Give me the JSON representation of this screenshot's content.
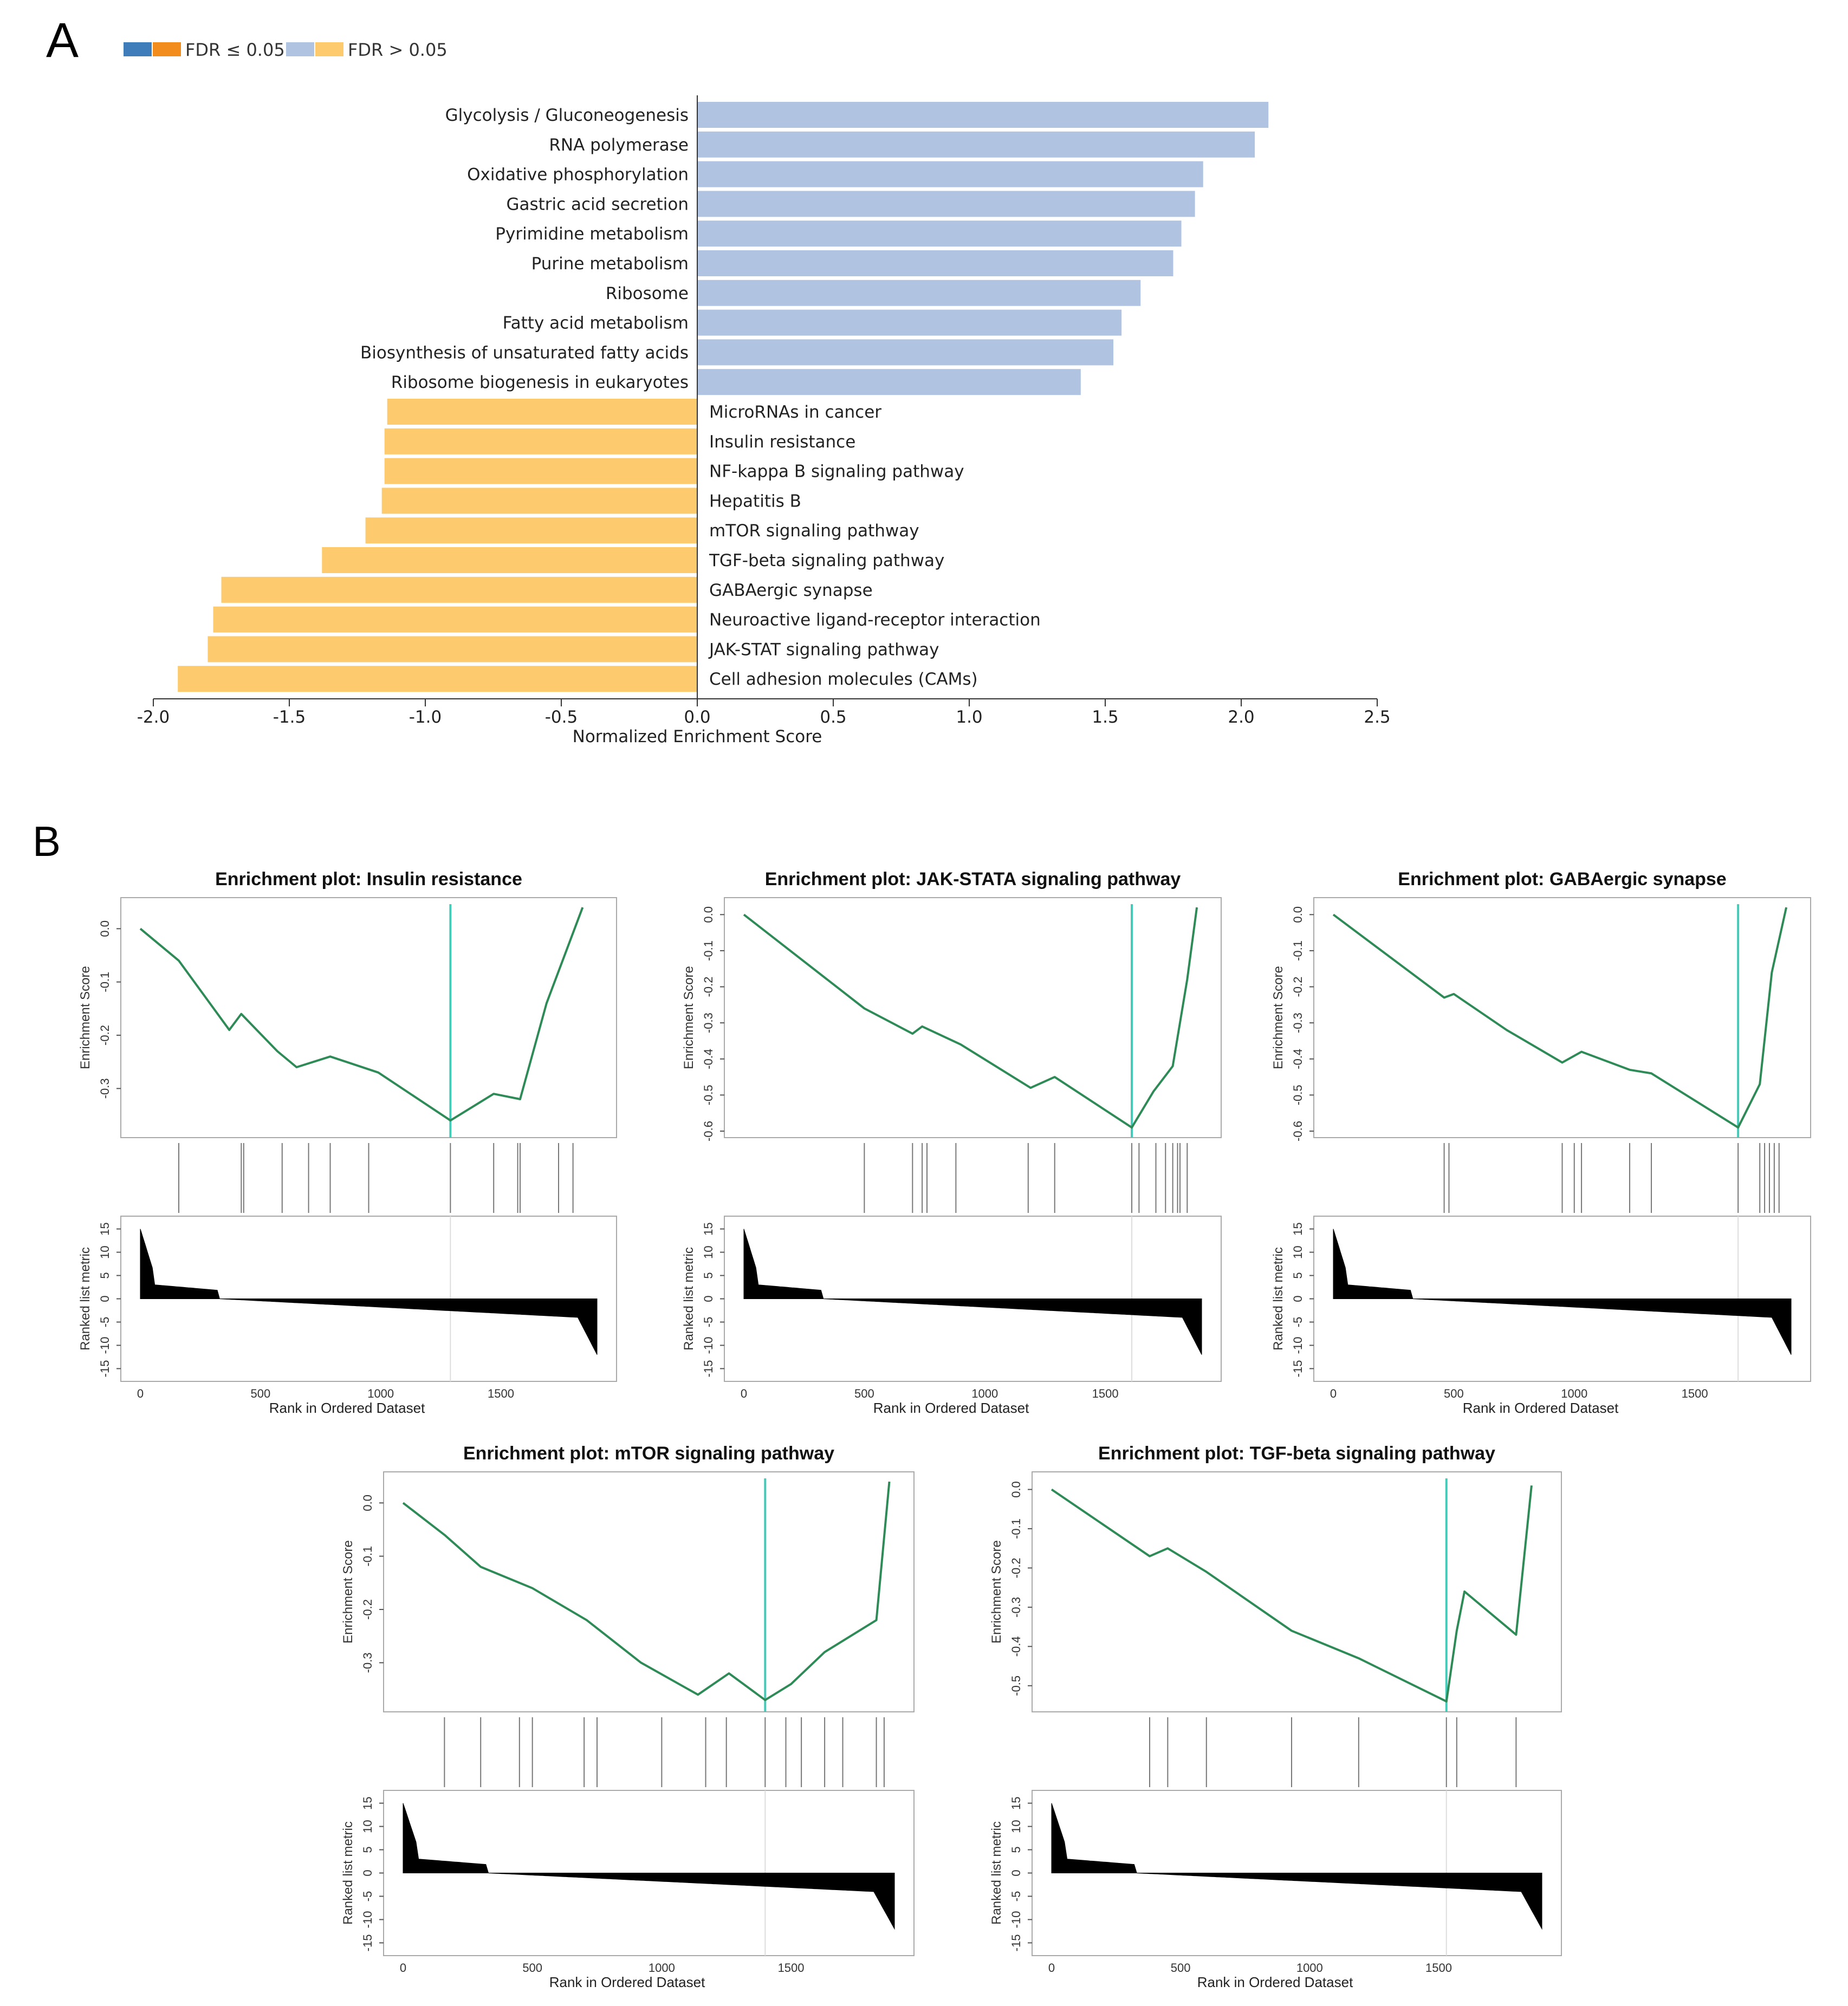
{
  "panel_labels": {
    "a": "A",
    "b": "B"
  },
  "colors": {
    "up_sig": "#3f7cba",
    "down_sig": "#f28c1c",
    "up_ns": "#b0c4e2",
    "down_ns": "#fdcb6e",
    "es_line": "#2e8b57",
    "peak_line": "#45c9b8",
    "axis": "#333333"
  },
  "legend": [
    {
      "colors": [
        "#3f7cba",
        "#f28c1c"
      ],
      "label": "FDR ≤ 0.05"
    },
    {
      "colors": [
        "#b0c4e2",
        "#fdcb6e"
      ],
      "label": "FDR > 0.05"
    }
  ],
  "chart_data": [
    {
      "type": "bar",
      "orientation": "horizontal",
      "title": "",
      "xlabel": "Normalized Enrichment Score",
      "xlim": [
        -2.0,
        2.5
      ],
      "xticks": [
        "-2.0",
        "-1.5",
        "-1.0",
        "-0.5",
        "0.0",
        "0.5",
        "1.0",
        "1.5",
        "2.0",
        "2.5"
      ],
      "categories": [
        "Glycolysis / Gluconeogenesis",
        "RNA polymerase",
        "Oxidative phosphorylation",
        "Gastric acid secretion",
        "Pyrimidine metabolism",
        "Purine metabolism",
        "Ribosome",
        "Fatty acid metabolism",
        "Biosynthesis of unsaturated fatty acids",
        "Ribosome biogenesis in eukaryotes",
        "MicroRNAs in cancer",
        "Insulin resistance",
        "NF-kappa B signaling pathway",
        "Hepatitis B",
        "mTOR signaling pathway",
        "TGF-beta signaling pathway",
        "GABAergic synapse",
        "Neuroactive ligand-receptor interaction",
        "JAK-STAT signaling pathway",
        "Cell adhesion molecules (CAMs)"
      ],
      "values": [
        2.1,
        2.05,
        1.86,
        1.83,
        1.78,
        1.75,
        1.63,
        1.56,
        1.53,
        1.41,
        -1.14,
        -1.15,
        -1.15,
        -1.16,
        -1.22,
        -1.38,
        -1.75,
        -1.78,
        -1.8,
        -1.91
      ],
      "fdr": "> 0.05"
    },
    {
      "type": "line",
      "title": "Enrichment plot: Insulin resistance",
      "ylabel": "Enrichment Score",
      "ylim": [
        -0.38,
        0.04
      ],
      "yticks": [
        "0.0",
        "-0.1",
        "-0.2",
        "-0.3"
      ],
      "rank_ylabel": "Ranked list metric",
      "rank_yticks": [
        "15",
        "10",
        "5",
        "0",
        "-5",
        "-10",
        "-15"
      ],
      "xlabel": "Rank in Ordered Dataset",
      "xticks": [
        "0",
        "500",
        "1000",
        "1500"
      ],
      "x": [
        0,
        160,
        370,
        420,
        570,
        650,
        790,
        990,
        1290,
        1470,
        1580,
        1690,
        1840
      ],
      "es": [
        0.0,
        -0.06,
        -0.19,
        -0.16,
        -0.23,
        -0.26,
        -0.24,
        -0.27,
        -0.36,
        -0.31,
        -0.32,
        -0.14,
        0.04
      ],
      "hits": [
        160,
        420,
        430,
        590,
        700,
        790,
        950,
        1290,
        1470,
        1570,
        1580,
        1740,
        1800
      ],
      "peak": 1290
    },
    {
      "type": "line",
      "title": "Enrichment plot: JAK-STATA signaling pathway",
      "ylabel": "Enrichment Score",
      "ylim": [
        -0.6,
        0.02
      ],
      "yticks": [
        "0.0",
        "-0.1",
        "-0.2",
        "-0.3",
        "-0.4",
        "-0.5",
        "-0.6"
      ],
      "rank_ylabel": "Ranked list metric",
      "rank_yticks": [
        "15",
        "10",
        "5",
        "0",
        "-5",
        "-10",
        "-15"
      ],
      "xlabel": "Rank in Ordered Dataset",
      "xticks": [
        "0",
        "500",
        "1000",
        "1500"
      ],
      "x": [
        0,
        500,
        700,
        740,
        900,
        1190,
        1290,
        1610,
        1700,
        1780,
        1840,
        1880
      ],
      "es": [
        0.0,
        -0.26,
        -0.33,
        -0.31,
        -0.36,
        -0.48,
        -0.45,
        -0.59,
        -0.49,
        -0.42,
        -0.18,
        0.02
      ],
      "hits": [
        500,
        700,
        740,
        760,
        880,
        1180,
        1290,
        1610,
        1640,
        1710,
        1750,
        1780,
        1800,
        1810,
        1840
      ],
      "peak": 1610
    },
    {
      "type": "line",
      "title": "Enrichment plot: GABAergic synapse",
      "ylabel": "Enrichment Score",
      "ylim": [
        -0.6,
        0.02
      ],
      "yticks": [
        "0.0",
        "-0.1",
        "-0.2",
        "-0.3",
        "-0.4",
        "-0.5",
        "-0.6"
      ],
      "rank_ylabel": "Ranked list metric",
      "rank_yticks": [
        "15",
        "10",
        "5",
        "0",
        "-5",
        "-10",
        "-15"
      ],
      "xlabel": "Rank in Ordered Dataset",
      "xticks": [
        "0",
        "500",
        "1000",
        "1500"
      ],
      "x": [
        0,
        460,
        500,
        720,
        950,
        1030,
        1230,
        1320,
        1680,
        1770,
        1820,
        1880
      ],
      "es": [
        0.0,
        -0.23,
        -0.22,
        -0.32,
        -0.41,
        -0.38,
        -0.43,
        -0.44,
        -0.59,
        -0.47,
        -0.16,
        0.02
      ],
      "hits": [
        460,
        480,
        950,
        1000,
        1030,
        1230,
        1320,
        1680,
        1770,
        1790,
        1810,
        1830,
        1850
      ],
      "peak": 1680
    },
    {
      "type": "line",
      "title": "Enrichment plot: mTOR signaling pathway",
      "ylabel": "Enrichment Score",
      "ylim": [
        -0.38,
        0.04
      ],
      "yticks": [
        "0.0",
        "-0.1",
        "-0.2",
        "-0.3"
      ],
      "rank_ylabel": "Ranked list metric",
      "rank_yticks": [
        "15",
        "10",
        "5",
        "0",
        "-5",
        "-10",
        "-15"
      ],
      "xlabel": "Rank in Ordered Dataset",
      "xticks": [
        "0",
        "500",
        "1000",
        "1500"
      ],
      "x": [
        0,
        160,
        300,
        500,
        710,
        920,
        1140,
        1260,
        1400,
        1500,
        1630,
        1830,
        1880
      ],
      "es": [
        0.0,
        -0.06,
        -0.12,
        -0.16,
        -0.22,
        -0.3,
        -0.36,
        -0.32,
        -0.37,
        -0.34,
        -0.28,
        -0.22,
        0.04
      ],
      "hits": [
        160,
        300,
        450,
        500,
        700,
        750,
        1000,
        1170,
        1250,
        1400,
        1480,
        1540,
        1630,
        1700,
        1830,
        1860
      ],
      "peak": 1400
    },
    {
      "type": "line",
      "title": "Enrichment plot: TGF-beta signaling pathway",
      "ylabel": "Enrichment Score",
      "ylim": [
        -0.55,
        0.02
      ],
      "yticks": [
        "0.0",
        "-0.1",
        "-0.2",
        "-0.3",
        "-0.4",
        "-0.5"
      ],
      "rank_ylabel": "Ranked list metric",
      "rank_yticks": [
        "15",
        "10",
        "5",
        "0",
        "-5",
        "-10",
        "-15"
      ],
      "xlabel": "Rank in Ordered Dataset",
      "xticks": [
        "0",
        "500",
        "1000",
        "1500"
      ],
      "x": [
        0,
        380,
        450,
        600,
        930,
        1190,
        1530,
        1570,
        1600,
        1800,
        1860
      ],
      "es": [
        0.0,
        -0.17,
        -0.15,
        -0.21,
        -0.36,
        -0.43,
        -0.54,
        -0.36,
        -0.26,
        -0.37,
        0.01
      ],
      "hits": [
        380,
        450,
        600,
        930,
        1190,
        1530,
        1570,
        1800
      ],
      "peak": 1530
    }
  ]
}
